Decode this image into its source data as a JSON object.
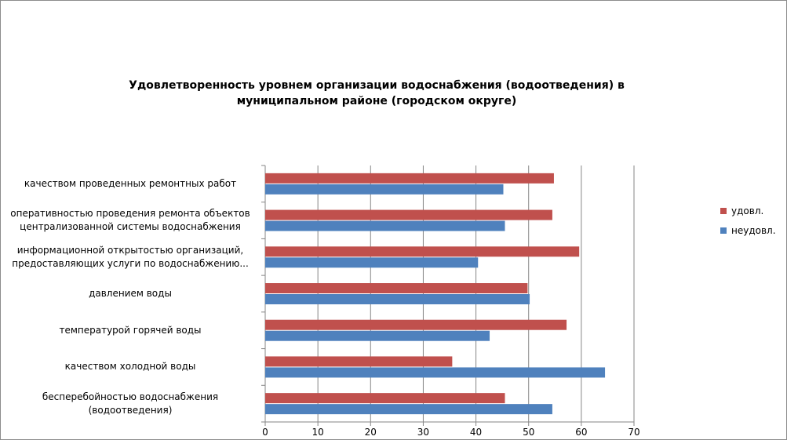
{
  "chart_data": {
    "type": "bar",
    "orientation": "horizontal",
    "title": "Удовлетворенность уровнем организации водоснабжения (водоотведения) в муниципальном районе (городском округе)",
    "categories": [
      "качеством проведенных ремонтных работ",
      "оперативностью проведения ремонта объектов централизованной системы водоснабжения",
      "информационной открытостью организаций, предоставляющих услуги по водоснабжению...",
      "давлением воды",
      "температурой горячей воды",
      "качеством холодной воды",
      "бесперебойностью водоснабжения (водоотведения)"
    ],
    "category_display": [
      [
        "качеством проведенных ремонтных работ"
      ],
      [
        "оперативностью проведения ремонта объектов",
        "централизованной системы водоснабжения"
      ],
      [
        "информационной открытостью организаций,",
        "предоставляющих услуги по водоснабжению..."
      ],
      [
        "давлением воды"
      ],
      [
        "температурой горячей воды"
      ],
      [
        "качеством холодной воды"
      ],
      [
        "бесперебойностью водоснабжения",
        "(водоотведения)"
      ]
    ],
    "series": [
      {
        "name": "удовл.",
        "color": "#c0504d",
        "values": [
          54.8,
          54.5,
          59.6,
          49.8,
          57.2,
          35.5,
          45.5
        ]
      },
      {
        "name": "неудовл.",
        "color": "#4f81bd",
        "values": [
          45.2,
          45.5,
          40.4,
          50.2,
          42.6,
          64.5,
          54.5
        ]
      }
    ],
    "xlim": [
      0,
      70
    ],
    "xticks": [
      "0",
      "10",
      "20",
      "30",
      "40",
      "50",
      "60",
      "70"
    ],
    "grid": true,
    "legend": "right"
  }
}
